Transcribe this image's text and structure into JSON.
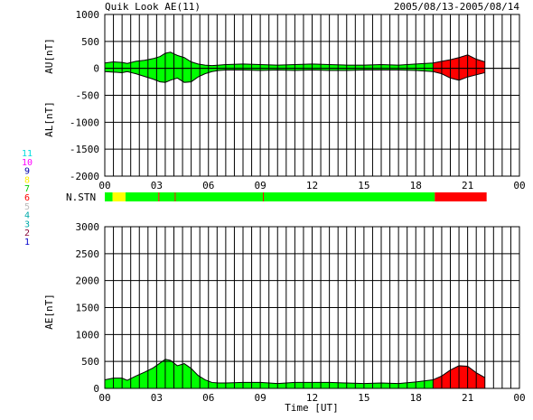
{
  "header": {
    "title": "Quik Look AE(11)",
    "date_range": "2005/08/13-2005/08/14"
  },
  "colors": {
    "1": "#0000cc",
    "2": "#8a0a3a",
    "3": "#00aaaa",
    "4": "#00aaaa",
    "5": "#bbbbbb",
    "6": "#ff0000",
    "7": "#00cc00",
    "8": "#ffee00",
    "9": "#0000aa",
    "10": "#ff00ff",
    "11": "#00dddd",
    "green": "#00ff00",
    "red": "#ff0000",
    "yellow": "#ffff00"
  },
  "station_legend": {
    "label": "N.STN",
    "items": [
      "11",
      "10",
      "9",
      "8",
      "7",
      "6",
      "5",
      "4",
      "3",
      "2",
      "1"
    ]
  },
  "x_axis": {
    "label": "Time [UT]",
    "ticks": [
      "00",
      "03",
      "06",
      "09",
      "12",
      "15",
      "18",
      "21",
      "00"
    ]
  },
  "chart_data": [
    {
      "type": "area",
      "name": "AU/AL",
      "upper_ylabel": "AU[nT]",
      "lower_ylabel": "AL[nT]",
      "ylim": [
        -2000,
        1000
      ],
      "yticks": [
        1000,
        500,
        0,
        -500,
        -1000,
        -1500,
        -2000
      ],
      "xlim": [
        0,
        24
      ],
      "grid": true,
      "x": [
        0,
        0.5,
        1,
        1.3,
        1.8,
        2.3,
        2.8,
        3.2,
        3.5,
        3.8,
        4.2,
        4.6,
        5.0,
        5.4,
        5.8,
        6.2,
        6.6,
        7.0,
        8.0,
        9.0,
        10.0,
        11.0,
        12.0,
        13.0,
        14.0,
        15.0,
        16.0,
        17.0,
        18.0,
        19.0,
        19.5,
        20.0,
        20.5,
        21.0,
        21.5,
        22.0
      ],
      "au": [
        100,
        120,
        110,
        90,
        130,
        150,
        180,
        220,
        280,
        300,
        240,
        200,
        120,
        80,
        60,
        50,
        60,
        70,
        80,
        70,
        60,
        70,
        80,
        70,
        60,
        60,
        70,
        60,
        80,
        100,
        130,
        160,
        200,
        250,
        170,
        120
      ],
      "al": [
        -60,
        -70,
        -80,
        -60,
        -100,
        -150,
        -200,
        -250,
        -260,
        -220,
        -180,
        -260,
        -250,
        -160,
        -100,
        -60,
        -40,
        -30,
        -30,
        -40,
        -30,
        -40,
        -30,
        -40,
        -40,
        -30,
        -30,
        -30,
        -40,
        -60,
        -100,
        -180,
        -220,
        -160,
        -120,
        -80
      ]
    },
    {
      "type": "bar",
      "name": "N.STN",
      "segments": [
        {
          "start": 0,
          "end": 0.45,
          "station_count": "7"
        },
        {
          "start": 0.45,
          "end": 1.2,
          "station_count": "8"
        },
        {
          "start": 1.2,
          "end": 3.1,
          "station_count": "7"
        },
        {
          "start": 3.1,
          "end": 3.16,
          "station_count": "6"
        },
        {
          "start": 3.16,
          "end": 4.05,
          "station_count": "7"
        },
        {
          "start": 4.05,
          "end": 4.1,
          "station_count": "6"
        },
        {
          "start": 4.1,
          "end": 9.15,
          "station_count": "7"
        },
        {
          "start": 9.15,
          "end": 9.2,
          "station_count": "6"
        },
        {
          "start": 9.2,
          "end": 19.1,
          "station_count": "7"
        },
        {
          "start": 19.1,
          "end": 22.1,
          "station_count": "6"
        }
      ]
    },
    {
      "type": "area",
      "name": "AE",
      "ylabel": "AE[nT]",
      "ylim": [
        0,
        3000
      ],
      "yticks": [
        3000,
        2500,
        2000,
        1500,
        1000,
        500,
        0
      ],
      "xlim": [
        0,
        24
      ],
      "grid": true,
      "x": [
        0,
        0.5,
        1,
        1.3,
        1.8,
        2.3,
        2.8,
        3.2,
        3.5,
        3.8,
        4.2,
        4.6,
        5.0,
        5.4,
        5.8,
        6.2,
        6.6,
        7.0,
        8.0,
        9.0,
        10.0,
        11.0,
        12.0,
        13.0,
        14.0,
        15.0,
        16.0,
        17.0,
        18.0,
        19.0,
        19.5,
        20.0,
        20.5,
        21.0,
        21.5,
        22.0
      ],
      "ae": [
        160,
        190,
        190,
        150,
        230,
        300,
        380,
        470,
        540,
        520,
        420,
        460,
        370,
        240,
        160,
        110,
        100,
        100,
        110,
        110,
        90,
        110,
        110,
        110,
        100,
        90,
        100,
        90,
        120,
        160,
        230,
        340,
        420,
        410,
        290,
        200
      ]
    }
  ]
}
